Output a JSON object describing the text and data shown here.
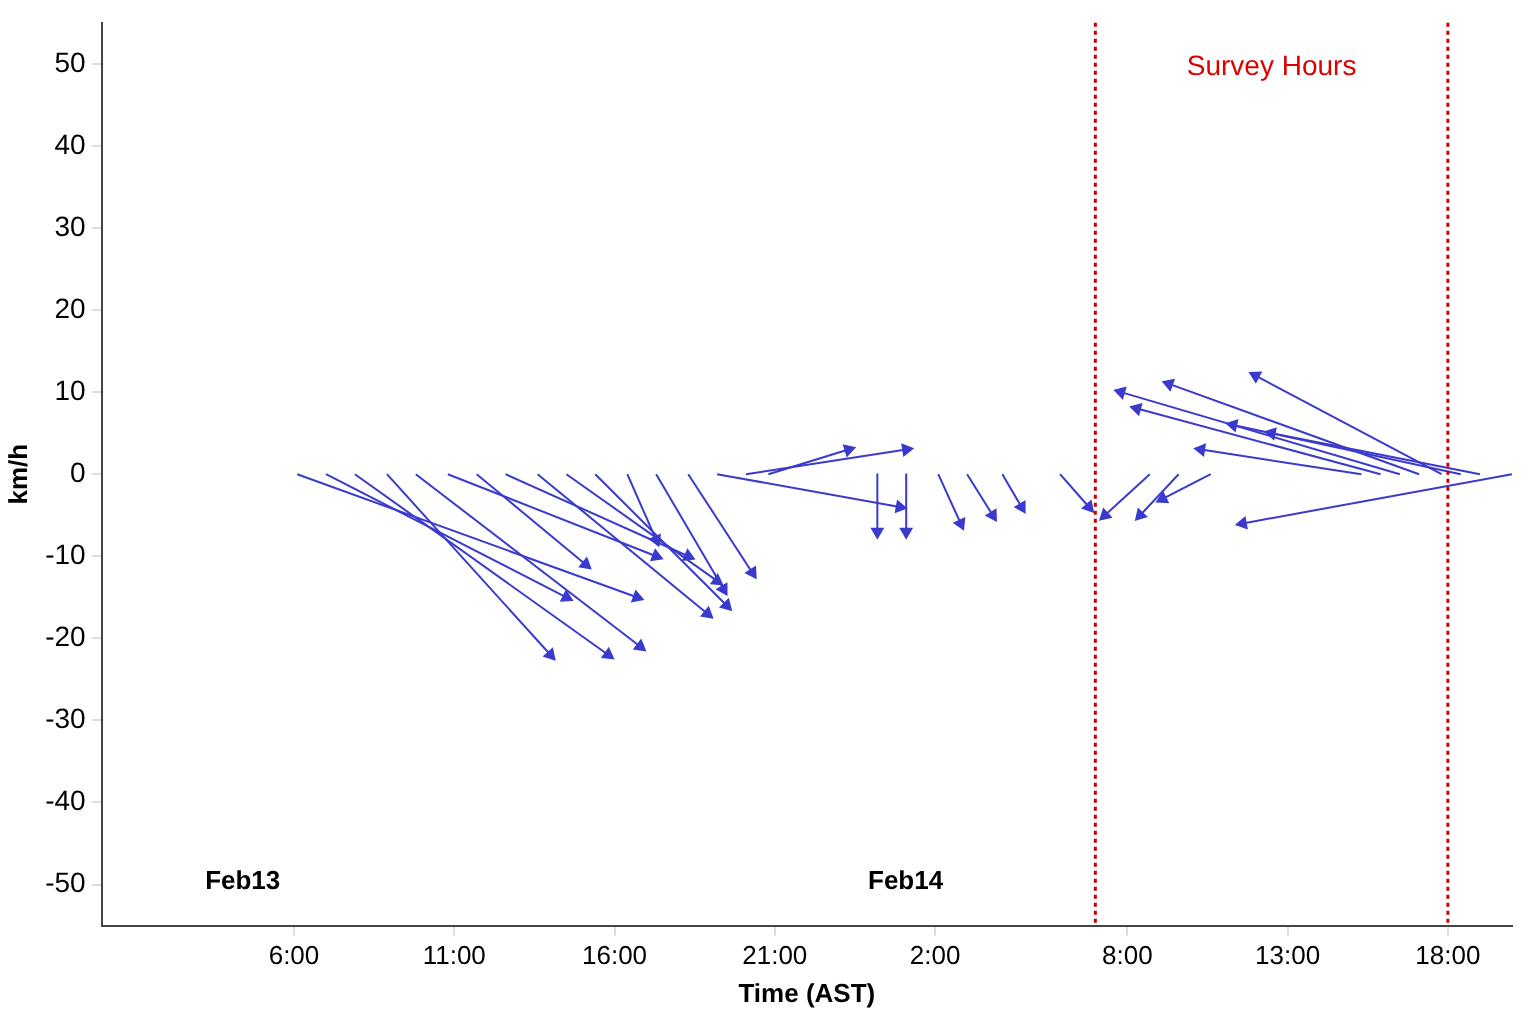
{
  "chart_data": {
    "type": "line",
    "xlabel": "Time (AST)",
    "ylabel": "km/h",
    "xlim": [
      "--02-13T00:00",
      "--02-14T20:00"
    ],
    "ylim": [
      -55,
      55
    ],
    "xticks": [
      {
        "value": "--02-13T06:00",
        "label": "6:00"
      },
      {
        "value": "--02-13T11:00",
        "label": "11:00"
      },
      {
        "value": "--02-13T16:00",
        "label": "16:00"
      },
      {
        "value": "--02-13T21:00",
        "label": "21:00"
      },
      {
        "value": "--02-14T02:00",
        "label": "2:00"
      },
      {
        "value": "--02-14T08:00",
        "label": "8:00"
      },
      {
        "value": "--02-14T13:00",
        "label": "13:00"
      },
      {
        "value": "--02-14T18:00",
        "label": "18:00"
      }
    ],
    "yticks": [
      -50,
      -40,
      -30,
      -20,
      -10,
      0,
      10,
      20,
      30,
      40,
      50
    ],
    "grid": false,
    "legend": false,
    "line_style": "solid",
    "marker": "triangle",
    "series": [
      {
        "color": "#3a3acc",
        "x": [
          "--02-13T06:06",
          "--02-13T16:42"
        ],
        "values": [
          0,
          -15
        ]
      },
      {
        "color": "#3a3acc",
        "x": [
          "--02-13T07:00",
          "--02-13T14:30"
        ],
        "values": [
          0,
          -15
        ]
      },
      {
        "color": "#3a3acc",
        "x": [
          "--02-13T07:54",
          "--02-13T15:48"
        ],
        "values": [
          0,
          -22
        ]
      },
      {
        "color": "#3a3acc",
        "x": [
          "--02-13T08:54",
          "--02-13T14:00"
        ],
        "values": [
          0,
          -22
        ]
      },
      {
        "color": "#3a3acc",
        "x": [
          "--02-13T09:48",
          "--02-13T16:48"
        ],
        "values": [
          0,
          -21
        ]
      },
      {
        "color": "#3a3acc",
        "x": [
          "--02-13T10:48",
          "--02-13T17:18"
        ],
        "values": [
          0,
          -10
        ]
      },
      {
        "color": "#3a3acc",
        "x": [
          "--02-13T11:42",
          "--02-13T15:06"
        ],
        "values": [
          0,
          -11
        ]
      },
      {
        "color": "#3a3acc",
        "x": [
          "--02-13T12:36",
          "--02-13T18:18"
        ],
        "values": [
          0,
          -10
        ]
      },
      {
        "color": "#3a3acc",
        "x": [
          "--02-13T13:36",
          "--02-13T18:54"
        ],
        "values": [
          0,
          -17
        ]
      },
      {
        "color": "#3a3acc",
        "x": [
          "--02-13T14:30",
          "--02-13T19:12"
        ],
        "values": [
          0,
          -13
        ]
      },
      {
        "color": "#3a3acc",
        "x": [
          "--02-13T15:24",
          "--02-13T19:30"
        ],
        "values": [
          0,
          -16
        ]
      },
      {
        "color": "#3a3acc",
        "x": [
          "--02-13T16:24",
          "--02-13T17:18"
        ],
        "values": [
          0,
          -8
        ]
      },
      {
        "color": "#3a3acc",
        "x": [
          "--02-13T17:18",
          "--02-13T19:24"
        ],
        "values": [
          0,
          -14
        ]
      },
      {
        "color": "#3a3acc",
        "x": [
          "--02-13T18:18",
          "--02-13T20:18"
        ],
        "values": [
          0,
          -12
        ]
      },
      {
        "color": "#3a3acc",
        "x": [
          "--02-13T19:12",
          "--02-14T00:54"
        ],
        "values": [
          0,
          -4
        ]
      },
      {
        "color": "#3a3acc",
        "x": [
          "--02-13T20:06",
          "--02-14T01:06"
        ],
        "values": [
          0,
          3
        ]
      },
      {
        "color": "#3a3acc",
        "x": [
          "--02-13T20:48",
          "--02-13T23:18"
        ],
        "values": [
          0,
          3
        ]
      },
      {
        "color": "#3a3acc",
        "x": [
          "--02-14T00:12",
          "--02-14T00:12"
        ],
        "values": [
          0,
          -7
        ]
      },
      {
        "color": "#3a3acc",
        "x": [
          "--02-14T01:06",
          "--02-14T01:06"
        ],
        "values": [
          0,
          -7
        ]
      },
      {
        "color": "#3a3acc",
        "x": [
          "--02-14T02:06",
          "--02-14T02:48"
        ],
        "values": [
          0,
          -6
        ]
      },
      {
        "color": "#3a3acc",
        "x": [
          "--02-14T03:00",
          "--02-14T03:48"
        ],
        "values": [
          0,
          -5
        ]
      },
      {
        "color": "#3a3acc",
        "x": [
          "--02-14T04:06",
          "--02-14T04:42"
        ],
        "values": [
          0,
          -4
        ]
      },
      {
        "color": "#3a3acc",
        "x": [
          "--02-14T05:54",
          "--02-14T06:48"
        ],
        "values": [
          0,
          -4
        ]
      },
      {
        "color": "#3a3acc",
        "x": [
          "--02-14T08:42",
          "--02-14T07:18"
        ],
        "values": [
          0,
          -5
        ]
      },
      {
        "color": "#3a3acc",
        "x": [
          "--02-14T09:36",
          "--02-14T08:24"
        ],
        "values": [
          0,
          -5
        ]
      },
      {
        "color": "#3a3acc",
        "x": [
          "--02-14T10:36",
          "--02-14T09:06"
        ],
        "values": [
          0,
          -3
        ]
      },
      {
        "color": "#3a3acc",
        "x": [
          "--02-14T15:18",
          "--02-14T10:18"
        ],
        "values": [
          0,
          3
        ]
      },
      {
        "color": "#3a3acc",
        "x": [
          "--02-14T15:54",
          "--02-14T08:18"
        ],
        "values": [
          0,
          8
        ]
      },
      {
        "color": "#3a3acc",
        "x": [
          "--02-14T16:30",
          "--02-14T07:48"
        ],
        "values": [
          0,
          10
        ]
      },
      {
        "color": "#3a3acc",
        "x": [
          "--02-14T17:06",
          "--02-14T09:18"
        ],
        "values": [
          0,
          11
        ]
      },
      {
        "color": "#3a3acc",
        "x": [
          "--02-14T17:48",
          "--02-14T12:00"
        ],
        "values": [
          0,
          12
        ]
      },
      {
        "color": "#3a3acc",
        "x": [
          "--02-14T18:24",
          "--02-14T11:18"
        ],
        "values": [
          0,
          6
        ]
      },
      {
        "color": "#3a3acc",
        "x": [
          "--02-14T19:00",
          "--02-14T12:30"
        ],
        "values": [
          0,
          5
        ]
      },
      {
        "color": "#3a3acc",
        "x": [
          "--02-14T20:00",
          "--02-14T11:36"
        ],
        "values": [
          0,
          -6
        ]
      }
    ],
    "ref_lines": [
      {
        "axis": "x",
        "value": "--02-14T07:00",
        "color": "#cc0000",
        "line_style": "dotted"
      },
      {
        "axis": "x",
        "value": "--02-14T18:00",
        "color": "#cc0000",
        "line_style": "dotted"
      }
    ],
    "annotations": [
      "Feb13",
      "Feb14",
      "Survey Hours"
    ]
  }
}
